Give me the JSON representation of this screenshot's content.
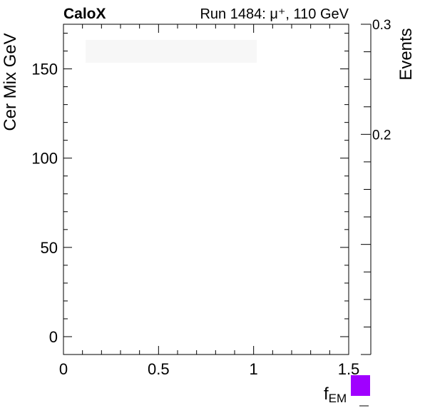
{
  "header": {
    "brand": "CaloX",
    "run_info": "Run 1484: μ⁺, 110 GeV"
  },
  "chart_data": {
    "type": "heatmap",
    "xlabel_main": "f",
    "xlabel_sub": "EM",
    "ylabel": "Cer Mix GeV",
    "zlabel": "Events",
    "xlim": [
      0,
      1.5
    ],
    "ylim": [
      -10,
      175
    ],
    "zlim": [
      0,
      0.3
    ],
    "x_ticks": [
      {
        "value": 0,
        "label": "0"
      },
      {
        "value": 0.5,
        "label": "0.5"
      },
      {
        "value": 1,
        "label": "1"
      },
      {
        "value": 1.5,
        "label": "1.5"
      }
    ],
    "y_ticks": [
      {
        "value": 0,
        "label": "0"
      },
      {
        "value": 50,
        "label": "50"
      },
      {
        "value": 100,
        "label": "100"
      },
      {
        "value": 150,
        "label": "150"
      }
    ],
    "z_ticks": [
      {
        "value": 0.2,
        "label": "0.2"
      },
      {
        "value": 0.3,
        "label": "0.3"
      }
    ],
    "cells": [],
    "palette_low_color": "#a000ff",
    "grid": false,
    "log_z": false
  }
}
